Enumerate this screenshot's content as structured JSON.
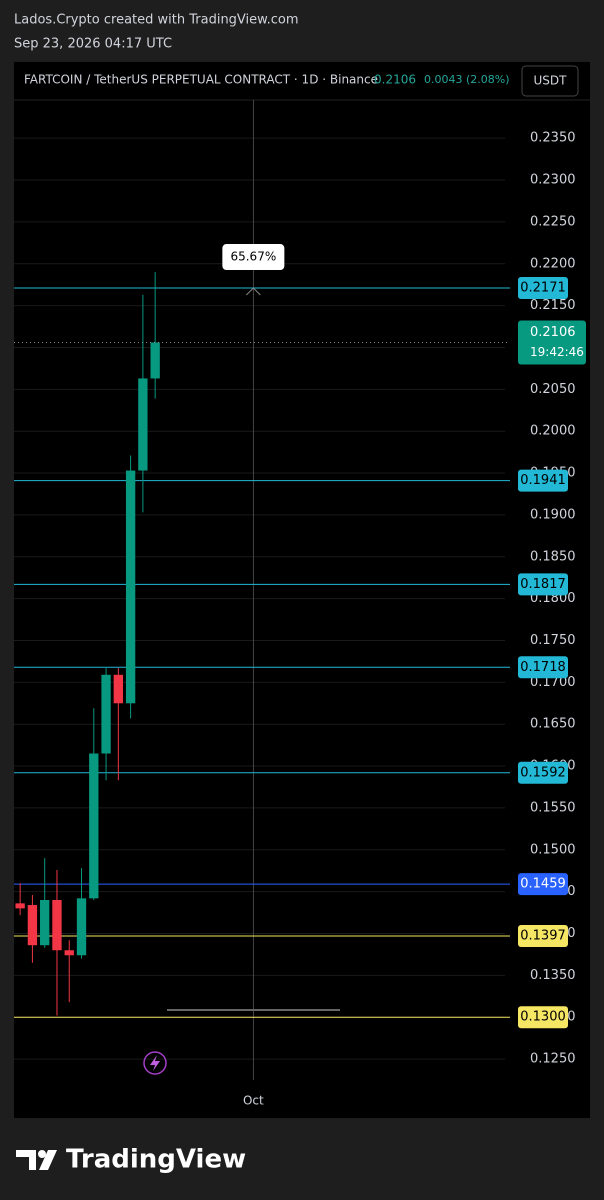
{
  "header": {
    "author": "Lados.Crypto created with TradingView.com",
    "timestamp": "Sep 23, 2026 04:17 UTC"
  },
  "footer": {
    "brand": "TradingView"
  },
  "chart_data": {
    "type": "candlestick",
    "title": "FARTCOIN / TetherUS PERPETUAL CONTRACT · 1D · Binance",
    "quote_price": "0.2106",
    "quote_change": "0.0043 (2.08%)",
    "currency": "USDT",
    "x": [
      0,
      1,
      2,
      3,
      4,
      5,
      6,
      7,
      8,
      9,
      10,
      11
    ],
    "open": [
      0.1436,
      0.1434,
      0.1386,
      0.144,
      0.138,
      0.1374,
      0.1442,
      0.1615,
      0.1709,
      0.1675,
      0.1953,
      0.2063
    ],
    "high": [
      0.146,
      0.1446,
      0.149,
      0.1476,
      0.1392,
      0.1478,
      0.1669,
      0.1717,
      0.1717,
      0.1971,
      0.2163,
      0.219
    ],
    "low": [
      0.1422,
      0.1365,
      0.1383,
      0.1302,
      0.1318,
      0.137,
      0.144,
      0.1583,
      0.1583,
      0.1657,
      0.1903,
      0.2039
    ],
    "close": [
      0.143,
      0.1386,
      0.144,
      0.138,
      0.1374,
      0.1442,
      0.1615,
      0.1709,
      0.1675,
      0.1953,
      0.2063,
      0.2106
    ],
    "up_color": "#089981",
    "down_color": "#f23645",
    "xlim": [
      -0.5,
      39.5
    ],
    "xticks": [
      {
        "value": 19,
        "label": "Oct"
      }
    ],
    "ylim": [
      0.1225,
      0.2441
    ],
    "yticks": [
      {
        "value": 0.125,
        "label": "0.1250"
      },
      {
        "value": 0.13,
        "label": "0.1300"
      },
      {
        "value": 0.135,
        "label": "0.1350"
      },
      {
        "value": 0.14,
        "label": "0.1400"
      },
      {
        "value": 0.145,
        "label": "0.1450"
      },
      {
        "value": 0.15,
        "label": "0.1500"
      },
      {
        "value": 0.155,
        "label": "0.1550"
      },
      {
        "value": 0.16,
        "label": "0.1600"
      },
      {
        "value": 0.165,
        "label": "0.1650"
      },
      {
        "value": 0.17,
        "label": "0.1700"
      },
      {
        "value": 0.175,
        "label": "0.1750"
      },
      {
        "value": 0.18,
        "label": "0.1800"
      },
      {
        "value": 0.185,
        "label": "0.1850"
      },
      {
        "value": 0.19,
        "label": "0.1900"
      },
      {
        "value": 0.195,
        "label": "0.1950"
      },
      {
        "value": 0.2,
        "label": "0.2000"
      },
      {
        "value": 0.205,
        "label": "0.2050"
      },
      {
        "value": 0.21,
        "label": "0.2100"
      },
      {
        "value": 0.215,
        "label": "0.2150"
      },
      {
        "value": 0.22,
        "label": "0.2200"
      },
      {
        "value": 0.225,
        "label": "0.2250"
      },
      {
        "value": 0.23,
        "label": "0.2300"
      },
      {
        "value": 0.235,
        "label": "0.2350"
      }
    ],
    "grid": true,
    "levels": [
      {
        "value": 0.2171,
        "label": "0.2171",
        "color": "#22b8d6",
        "text_color": "#000000"
      },
      {
        "value": 0.1941,
        "label": "0.1941",
        "color": "#22b8d6",
        "text_color": "#000000"
      },
      {
        "value": 0.1817,
        "label": "0.1817",
        "color": "#22b8d6",
        "text_color": "#000000"
      },
      {
        "value": 0.1718,
        "label": "0.1718",
        "color": "#22b8d6",
        "text_color": "#000000"
      },
      {
        "value": 0.1592,
        "label": "0.1592",
        "color": "#22b8d6",
        "text_color": "#000000"
      },
      {
        "value": 0.1459,
        "label": "0.1459",
        "color": "#2962ff",
        "text_color": "#ffffff"
      },
      {
        "value": 0.1397,
        "label": "0.1397",
        "color": "#f5e663",
        "text_color": "#000000"
      },
      {
        "value": 0.13,
        "label": "0.1300",
        "color": "#f5e663",
        "text_color": "#000000"
      }
    ],
    "last": {
      "value": 0.2106,
      "label": "0.2106",
      "countdown": "19:42:46"
    },
    "measure": {
      "text": "65.67%",
      "x": 19,
      "y": 0.2171
    }
  }
}
